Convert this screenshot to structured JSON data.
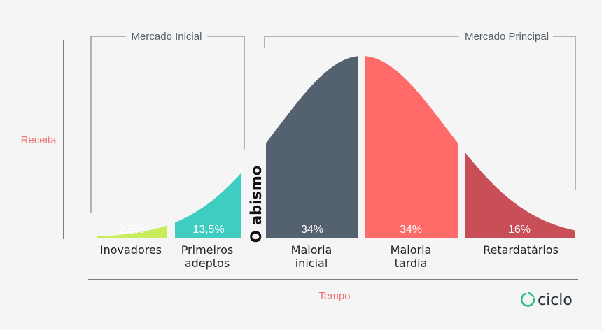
{
  "chart_data": {
    "type": "area",
    "title": "",
    "ylabel": "Receita",
    "xlabel": "Tempo",
    "chasm_label": "O abismo",
    "brackets": [
      {
        "label": "Mercado Inicial"
      },
      {
        "label": "Mercado Principal"
      }
    ],
    "segments": [
      {
        "name": "Inovadores",
        "lines": [
          "Inovadores"
        ],
        "value_label": "2,5%",
        "value": 2.5,
        "color": "#c8ec5a"
      },
      {
        "name": "Primeiros adeptos",
        "lines": [
          "Primeiros",
          "adeptos"
        ],
        "value_label": "13,5%",
        "value": 13.5,
        "color": "#3ecdc0"
      },
      {
        "name": "Maioria inicial",
        "lines": [
          "Maioria",
          "inicial"
        ],
        "value_label": "34%",
        "value": 34,
        "color": "#546170"
      },
      {
        "name": "Maioria tardia",
        "lines": [
          "Maioria",
          "tardia"
        ],
        "value_label": "34%",
        "value": 34,
        "color": "#ff6b68"
      },
      {
        "name": "Retardatários",
        "lines": [
          "Retardatários"
        ],
        "value_label": "16%",
        "value": 16,
        "color": "#c84e57"
      }
    ]
  },
  "brand": {
    "name": "ciclo",
    "icon": "ciclo-logo-icon",
    "color": "#2fc08a"
  },
  "colors": {
    "bracket": "#8a8f98",
    "axis": "#555555"
  }
}
